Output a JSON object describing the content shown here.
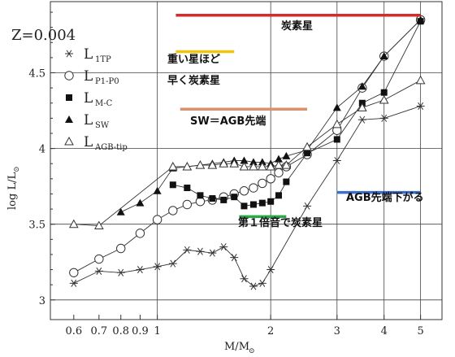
{
  "chart_data": {
    "type": "line",
    "xscale": "log",
    "xlim": [
      0.52,
      5.7
    ],
    "ylim": [
      2.87,
      4.97
    ],
    "xlabel": "M/M",
    "xlabel_sub": "⊙",
    "ylabel": "log L/L",
    "ylabel_sub": "⊙",
    "x_ticks": [
      {
        "v": 0.6,
        "label": "0.6"
      },
      {
        "v": 0.7,
        "label": "0.7"
      },
      {
        "v": 0.8,
        "label": "0.8"
      },
      {
        "v": 0.9,
        "label": "0.9"
      },
      {
        "v": 1,
        "label": "1"
      },
      {
        "v": 2,
        "label": "2"
      },
      {
        "v": 3,
        "label": "3"
      },
      {
        "v": 4,
        "label": "4"
      },
      {
        "v": 5,
        "label": "5"
      }
    ],
    "y_ticks": [
      {
        "v": 3,
        "label": "3"
      },
      {
        "v": 3.5,
        "label": "3.5"
      },
      {
        "v": 4,
        "label": "4"
      },
      {
        "v": 4.5,
        "label": "4.5"
      }
    ],
    "metallicity_label": "Z=0.004",
    "series": [
      {
        "name": "L",
        "sub": "1TP",
        "marker": "star",
        "x": [
          0.6,
          0.7,
          0.8,
          0.9,
          1.0,
          1.1,
          1.2,
          1.3,
          1.4,
          1.5,
          1.6,
          1.7,
          1.8,
          1.9,
          2.0,
          2.5,
          3.0,
          3.5,
          4.0,
          5.0
        ],
        "y": [
          3.11,
          3.19,
          3.18,
          3.2,
          3.22,
          3.24,
          3.33,
          3.32,
          3.31,
          3.35,
          3.28,
          3.14,
          3.09,
          3.11,
          3.2,
          3.62,
          3.92,
          4.19,
          4.2,
          4.28
        ]
      },
      {
        "name": "L",
        "sub": "P1-P0",
        "marker": "circle",
        "x": [
          0.6,
          0.7,
          0.8,
          0.9,
          1.0,
          1.1,
          1.2,
          1.3,
          1.4,
          1.5,
          1.6,
          1.7,
          1.8,
          1.9,
          2.0,
          2.1,
          2.2,
          2.5,
          3.0,
          3.5,
          4.0,
          5.0
        ],
        "y": [
          3.18,
          3.27,
          3.34,
          3.44,
          3.53,
          3.59,
          3.63,
          3.65,
          3.66,
          3.68,
          3.7,
          3.72,
          3.74,
          3.77,
          3.8,
          3.84,
          3.88,
          3.96,
          4.12,
          4.4,
          4.61,
          4.85
        ]
      },
      {
        "name": "L",
        "sub": "M-C",
        "marker": "square",
        "x": [
          1.1,
          1.2,
          1.3,
          1.4,
          1.5,
          1.6,
          1.7,
          1.8,
          1.9,
          2.0,
          2.1,
          2.2,
          2.5,
          3.0,
          3.5,
          4.0,
          5.0
        ],
        "y": [
          3.76,
          3.74,
          3.69,
          3.67,
          3.66,
          3.68,
          3.62,
          3.63,
          3.64,
          3.65,
          3.69,
          3.78,
          3.97,
          4.06,
          4.3,
          4.37,
          4.84
        ]
      },
      {
        "name": "L",
        "sub": "SW",
        "marker": "triangle",
        "x": [
          0.8,
          0.9,
          1.0,
          1.1,
          1.2,
          1.3,
          1.4,
          1.5,
          1.6,
          1.7,
          1.8,
          1.9,
          2.0,
          2.1,
          2.2,
          2.5,
          3.0,
          3.5,
          4.0,
          5.0
        ],
        "y": [
          3.58,
          3.64,
          3.72,
          3.87,
          3.88,
          3.89,
          3.9,
          3.91,
          3.92,
          3.92,
          3.91,
          3.91,
          3.9,
          3.93,
          3.95,
          3.99,
          4.27,
          4.41,
          4.61,
          4.85
        ]
      },
      {
        "name": "L",
        "sub": "AGB-tip",
        "marker": "open-triangle",
        "x": [
          0.6,
          0.7,
          1.1,
          1.2,
          1.3,
          1.4,
          1.5,
          1.6,
          1.7,
          1.8,
          1.9,
          2.0,
          2.1,
          2.2,
          2.5,
          3.0,
          3.5,
          4.0,
          5.0
        ],
        "y": [
          3.5,
          3.49,
          3.88,
          3.88,
          3.89,
          3.89,
          3.9,
          3.9,
          3.88,
          3.88,
          3.88,
          3.88,
          3.89,
          3.89,
          4.01,
          4.16,
          4.27,
          4.32,
          4.45
        ]
      }
    ],
    "annotations": [
      {
        "text": "炭素星",
        "color": "#d62b2b",
        "line": {
          "x1": 1.12,
          "x2": 5.0,
          "y": 4.88
        }
      },
      {
        "text": "重い星ほど",
        "text2": "早く炭素星",
        "color": "#f2c40f",
        "line": {
          "x1": 1.12,
          "x2": 1.6,
          "y": 4.64
        }
      },
      {
        "text": "SW＝AGB先端",
        "color": "#d9926a",
        "line": {
          "x1": 1.15,
          "x2": 2.5,
          "y": 4.26
        }
      },
      {
        "text": "AGB先端下がる",
        "color": "#3a6fcf",
        "line": {
          "x1": 3.0,
          "x2": 5.0,
          "y": 3.71
        }
      },
      {
        "text": "第１倍音で炭素星",
        "color": "#2ba84a",
        "line": {
          "x1": 1.65,
          "x2": 2.2,
          "y": 3.55
        }
      }
    ]
  }
}
